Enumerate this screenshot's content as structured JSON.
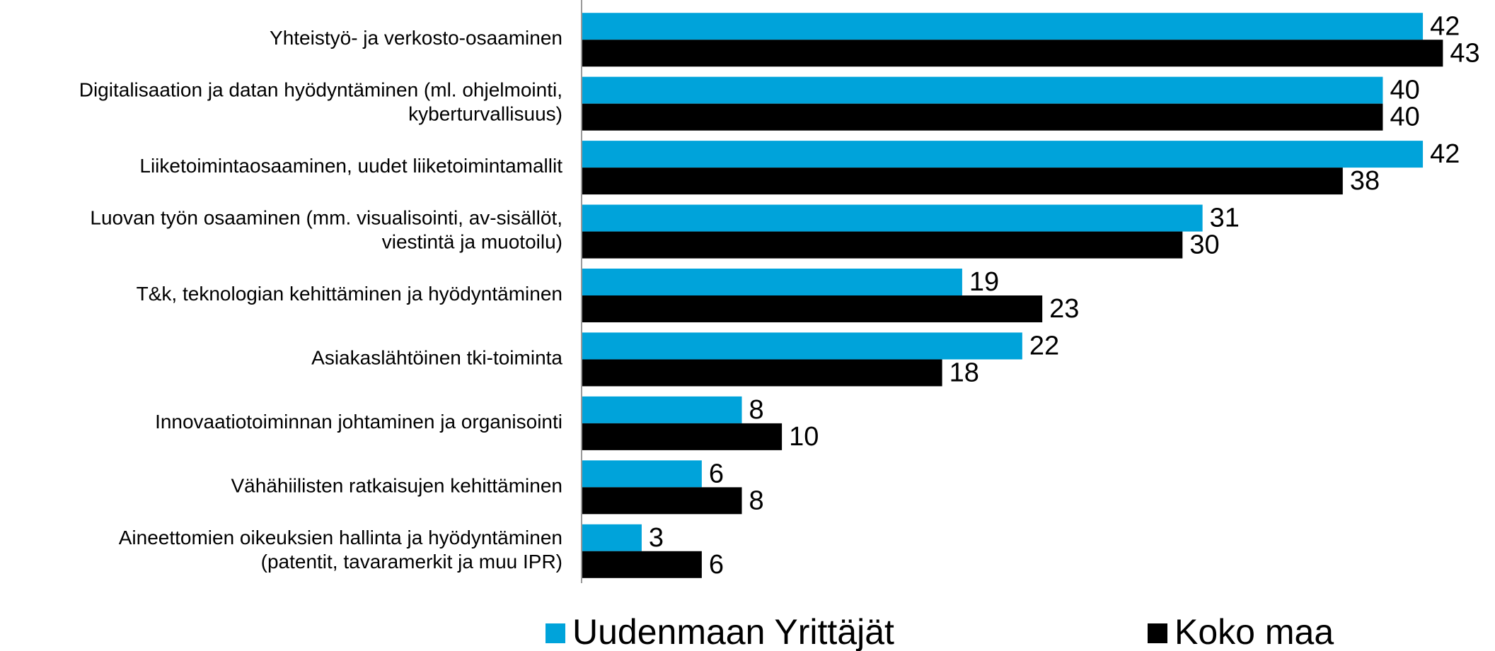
{
  "chart_data": {
    "type": "barh",
    "categories": [
      "Yhteistyö- ja verkosto-osaaminen",
      "Digitalisaation ja datan hyödyntäminen (ml. ohjelmointi,\nkyberturvallisuus)",
      "Liiketoimintaosaaminen, uudet liiketoimintamallit",
      "Luovan työn osaaminen (mm. visualisointi, av-sisällöt,\nviestintä ja muotoilu)",
      "T&k, teknologian kehittäminen ja hyödyntäminen",
      "Asiakaslähtöinen tki-toiminta",
      "Innovaatiotoiminnan johtaminen ja organisointi",
      "Vähähiilisten ratkaisujen kehittäminen",
      "Aineettomien oikeuksien hallinta ja hyödyntäminen\n(patentit, tavaramerkit ja muu IPR)"
    ],
    "series": [
      {
        "name": "Uudenmaan Yrittäjät",
        "color": "#00a3da",
        "values": [
          42,
          40,
          42,
          31,
          19,
          22,
          8,
          6,
          3
        ]
      },
      {
        "name": "Koko maa",
        "color": "#000000",
        "values": [
          43,
          40,
          38,
          30,
          23,
          18,
          10,
          8,
          6
        ]
      }
    ],
    "xlim": [
      0,
      45
    ],
    "legend": "bottom"
  }
}
